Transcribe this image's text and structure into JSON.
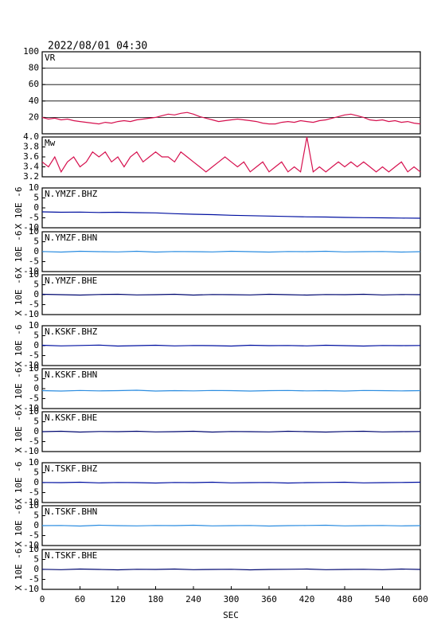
{
  "title": "2022/08/01 04:30",
  "x_axis": {
    "label": "SEC",
    "lim": [
      0,
      600
    ],
    "ticks": [
      0,
      60,
      120,
      180,
      240,
      300,
      360,
      420,
      480,
      540,
      600
    ]
  },
  "chart_data": [
    {
      "type": "line",
      "name": "VR",
      "ylim": [
        0,
        100
      ],
      "yticks": [
        20,
        40,
        60,
        80,
        100
      ],
      "grid": true,
      "color": "#d6104e",
      "x": [
        0,
        10,
        20,
        30,
        40,
        50,
        60,
        70,
        80,
        90,
        100,
        110,
        120,
        130,
        140,
        150,
        160,
        170,
        180,
        190,
        200,
        210,
        220,
        230,
        240,
        250,
        260,
        270,
        280,
        290,
        300,
        310,
        320,
        330,
        340,
        350,
        360,
        370,
        380,
        390,
        400,
        410,
        420,
        430,
        440,
        450,
        460,
        470,
        480,
        490,
        500,
        510,
        520,
        530,
        540,
        550,
        560,
        570,
        580,
        590,
        600
      ],
      "values": [
        20,
        18,
        19,
        17,
        18,
        16,
        15,
        14,
        13,
        12,
        14,
        13,
        15,
        16,
        15,
        17,
        18,
        19,
        20,
        22,
        24,
        23,
        25,
        26,
        24,
        21,
        19,
        17,
        15,
        16,
        17,
        18,
        17,
        16,
        15,
        13,
        12,
        12,
        14,
        15,
        14,
        16,
        15,
        14,
        16,
        17,
        19,
        21,
        23,
        24,
        22,
        20,
        17,
        16,
        17,
        15,
        16,
        14,
        15,
        13,
        12
      ]
    },
    {
      "type": "line",
      "name": "Mw",
      "ylim": [
        3.2,
        4
      ],
      "yticks": [
        3.2,
        3.4,
        3.6,
        3.8,
        {
          "value": 4,
          "label": "4.0"
        }
      ],
      "grid": false,
      "color": "#d6104e",
      "x": [
        0,
        10,
        20,
        30,
        40,
        50,
        60,
        70,
        80,
        90,
        100,
        110,
        120,
        130,
        140,
        150,
        160,
        170,
        180,
        190,
        200,
        210,
        220,
        230,
        240,
        250,
        260,
        270,
        280,
        290,
        300,
        310,
        320,
        330,
        340,
        350,
        360,
        370,
        380,
        390,
        400,
        410,
        420,
        430,
        440,
        450,
        460,
        470,
        480,
        490,
        500,
        510,
        520,
        530,
        540,
        550,
        560,
        570,
        580,
        590,
        600
      ],
      "values": [
        3.5,
        3.4,
        3.6,
        3.3,
        3.5,
        3.6,
        3.4,
        3.5,
        3.7,
        3.6,
        3.7,
        3.5,
        3.6,
        3.4,
        3.6,
        3.7,
        3.5,
        3.6,
        3.7,
        3.6,
        3.6,
        3.5,
        3.7,
        3.6,
        3.5,
        3.4,
        3.3,
        3.4,
        3.5,
        3.6,
        3.5,
        3.4,
        3.5,
        3.3,
        3.4,
        3.5,
        3.3,
        3.4,
        3.5,
        3.3,
        3.4,
        3.3,
        4.0,
        3.3,
        3.4,
        3.3,
        3.4,
        3.5,
        3.4,
        3.5,
        3.4,
        3.5,
        3.4,
        3.3,
        3.4,
        3.3,
        3.4,
        3.5,
        3.3,
        3.4,
        3.3
      ]
    },
    {
      "type": "line",
      "name": "N.YMZF.BHZ",
      "y_label": "X 10E -6",
      "ylim": [
        -10,
        10
      ],
      "yticks": [
        -10,
        -5,
        0,
        5,
        10
      ],
      "color": "#0010a0",
      "x": [
        0,
        30,
        60,
        90,
        120,
        150,
        180,
        210,
        240,
        270,
        300,
        330,
        360,
        390,
        420,
        450,
        480,
        510,
        540,
        570,
        600
      ],
      "values": [
        -2.0,
        -2.2,
        -2.1,
        -2.3,
        -2.2,
        -2.4,
        -2.5,
        -2.9,
        -3.2,
        -3.4,
        -3.7,
        -3.9,
        -4.1,
        -4.3,
        -4.5,
        -4.6,
        -4.8,
        -4.9,
        -5.0,
        -5.1,
        -5.2
      ]
    },
    {
      "type": "line",
      "name": "N.YMZF.BHN",
      "y_label": "X 10E -6",
      "ylim": [
        -10,
        10
      ],
      "yticks": [
        -10,
        -5,
        0,
        5,
        10
      ],
      "color": "#2a8ce0",
      "x": [
        0,
        30,
        60,
        90,
        120,
        150,
        180,
        210,
        240,
        270,
        300,
        330,
        360,
        390,
        420,
        450,
        480,
        510,
        540,
        570,
        600
      ],
      "values": [
        0.1,
        -0.2,
        0.2,
        0,
        -0.1,
        0.2,
        -0.2,
        0.1,
        0,
        -0.1,
        0.2,
        0,
        -0.2,
        0.1,
        0,
        0.2,
        -0.1,
        0,
        0.1,
        -0.2,
        0
      ]
    },
    {
      "type": "line",
      "name": "N.YMZF.BHE",
      "y_label": "X 10E -6",
      "ylim": [
        -10,
        10
      ],
      "yticks": [
        -10,
        -5,
        0,
        5,
        10
      ],
      "color": "#000870",
      "x": [
        0,
        30,
        60,
        90,
        120,
        150,
        180,
        210,
        240,
        270,
        300,
        330,
        360,
        390,
        420,
        450,
        480,
        510,
        540,
        570,
        600
      ],
      "values": [
        0.2,
        0,
        -0.2,
        0.1,
        0.2,
        -0.1,
        0,
        0.2,
        -0.2,
        0.1,
        0,
        -0.1,
        0.2,
        0,
        -0.2,
        0.1,
        0,
        0.2,
        -0.1,
        0.1,
        0
      ]
    },
    {
      "type": "line",
      "name": "N.KSKF.BHZ",
      "y_label": "X 10E -6",
      "ylim": [
        -10,
        10
      ],
      "yticks": [
        -10,
        -5,
        0,
        5,
        10
      ],
      "color": "#0010a0",
      "x": [
        0,
        30,
        60,
        90,
        120,
        150,
        180,
        210,
        240,
        270,
        300,
        330,
        360,
        390,
        420,
        450,
        480,
        510,
        540,
        570,
        600
      ],
      "values": [
        0.2,
        -0.1,
        0.1,
        0.3,
        -0.2,
        0,
        0.2,
        -0.1,
        0.1,
        0,
        -0.2,
        0.2,
        0,
        0.1,
        -0.1,
        0.2,
        0,
        -0.2,
        0.1,
        0,
        0.1
      ]
    },
    {
      "type": "line",
      "name": "N.KSKF.BHN",
      "y_label": "X 10E -6",
      "ylim": [
        -10,
        10
      ],
      "yticks": [
        -10,
        -5,
        0,
        5,
        10
      ],
      "color": "#2a8ce0",
      "x": [
        0,
        30,
        60,
        90,
        120,
        150,
        180,
        210,
        240,
        270,
        300,
        330,
        360,
        390,
        420,
        450,
        480,
        510,
        540,
        570,
        600
      ],
      "values": [
        -1.0,
        -1.2,
        -0.9,
        -1.1,
        -1.0,
        -0.8,
        -1.2,
        -1.0,
        -1.1,
        -0.9,
        -1.0,
        -1.2,
        -1.0,
        -0.9,
        -1.1,
        -1.0,
        -1.2,
        -0.9,
        -1.0,
        -1.1,
        -1.0
      ]
    },
    {
      "type": "line",
      "name": "N.KSKF.BHE",
      "y_label": "X 10E -6",
      "ylim": [
        -10,
        10
      ],
      "yticks": [
        -10,
        -5,
        0,
        5,
        10
      ],
      "color": "#000870",
      "x": [
        0,
        30,
        60,
        90,
        120,
        150,
        180,
        210,
        240,
        270,
        300,
        330,
        360,
        390,
        420,
        450,
        480,
        510,
        540,
        570,
        600
      ],
      "values": [
        0,
        0.2,
        -0.2,
        0.1,
        0,
        0.2,
        -0.1,
        0,
        0.2,
        -0.2,
        0.1,
        0,
        -0.1,
        0.2,
        0,
        -0.2,
        0.1,
        0.2,
        -0.1,
        0,
        0.1
      ]
    },
    {
      "type": "line",
      "name": "N.TSKF.BHZ",
      "y_label": "X 10E -6",
      "ylim": [
        -10,
        10
      ],
      "yticks": [
        -10,
        -5,
        0,
        5,
        10
      ],
      "color": "#0010a0",
      "x": [
        0,
        30,
        60,
        90,
        120,
        150,
        180,
        210,
        240,
        270,
        300,
        330,
        360,
        390,
        420,
        450,
        480,
        510,
        540,
        570,
        600
      ],
      "values": [
        0.1,
        0,
        0.2,
        -0.1,
        0.1,
        0,
        -0.2,
        0.1,
        0,
        0.2,
        -0.1,
        0,
        0.1,
        -0.2,
        0,
        0.1,
        0.2,
        -0.1,
        0,
        0.1,
        0.2
      ]
    },
    {
      "type": "line",
      "name": "N.TSKF.BHN",
      "y_label": "X 10E -6",
      "ylim": [
        -10,
        10
      ],
      "yticks": [
        -10,
        -5,
        0,
        5,
        10
      ],
      "color": "#2a8ce0",
      "x": [
        0,
        30,
        60,
        90,
        120,
        150,
        180,
        210,
        240,
        270,
        300,
        330,
        360,
        390,
        420,
        450,
        480,
        510,
        540,
        570,
        600
      ],
      "values": [
        0,
        0.1,
        -0.2,
        0.2,
        0,
        -0.1,
        0.1,
        0,
        0.2,
        -0.1,
        0,
        0.1,
        -0.2,
        0,
        0.1,
        0.2,
        -0.1,
        0,
        0.1,
        -0.1,
        0
      ]
    },
    {
      "type": "line",
      "name": "N.TSKF.BHE",
      "y_label": "X 10E -6",
      "ylim": [
        -10,
        10
      ],
      "yticks": [
        -10,
        -5,
        0,
        5,
        10
      ],
      "color": "#000870",
      "x": [
        0,
        30,
        60,
        90,
        120,
        150,
        180,
        210,
        240,
        270,
        300,
        330,
        360,
        390,
        420,
        450,
        480,
        510,
        540,
        570,
        600
      ],
      "values": [
        0.1,
        -0.1,
        0.2,
        0,
        -0.2,
        0.1,
        0,
        0.2,
        -0.1,
        0,
        0.1,
        -0.2,
        0,
        0.1,
        0.2,
        -0.1,
        0,
        0.1,
        -0.1,
        0.2,
        0
      ]
    }
  ]
}
